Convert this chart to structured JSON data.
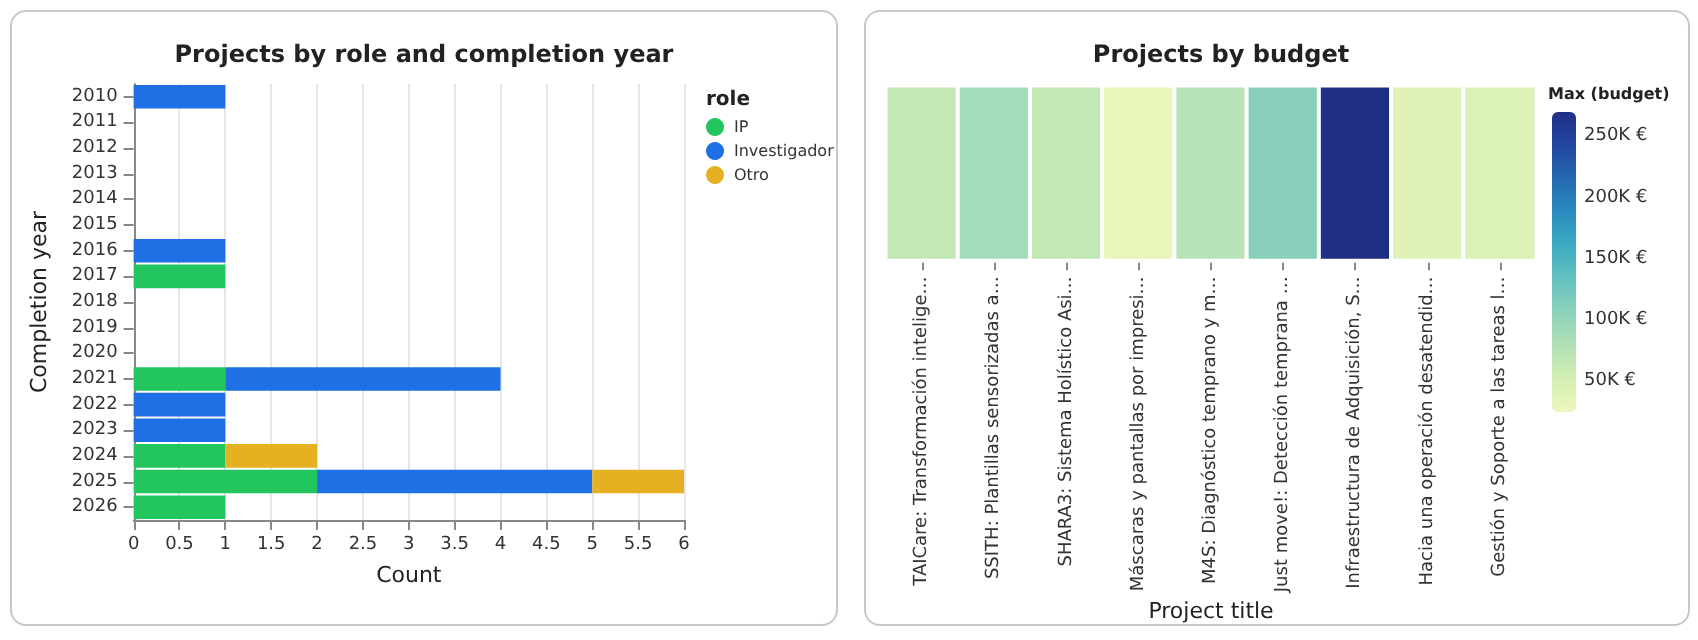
{
  "chart_data": [
    {
      "type": "bar",
      "orientation": "horizontal",
      "stacked": true,
      "title": "Projects by role and completion year",
      "xlabel": "Count",
      "ylabel": "Completion year",
      "legend_title": "role",
      "legend": "top right",
      "grid": "x",
      "categories": [
        "2010",
        "2011",
        "2012",
        "2013",
        "2014",
        "2015",
        "2016",
        "2017",
        "2018",
        "2019",
        "2020",
        "2021",
        "2022",
        "2023",
        "2024",
        "2025",
        "2026"
      ],
      "series": [
        {
          "name": "IP",
          "color": "#22c55e",
          "values": [
            null,
            null,
            null,
            null,
            null,
            null,
            null,
            1,
            null,
            null,
            null,
            1,
            null,
            null,
            1,
            2,
            1
          ]
        },
        {
          "name": "Investigador",
          "color": "#1f6fe5",
          "values": [
            1,
            null,
            null,
            null,
            null,
            null,
            1,
            null,
            null,
            null,
            null,
            3,
            1,
            1,
            null,
            3,
            null
          ]
        },
        {
          "name": "Otro",
          "color": "#e5b021",
          "values": [
            null,
            null,
            null,
            null,
            null,
            null,
            null,
            null,
            null,
            null,
            null,
            null,
            null,
            null,
            1,
            1,
            null
          ]
        }
      ],
      "xlim": [
        0,
        6
      ],
      "xticks": [
        0,
        0.5,
        1,
        1.5,
        2,
        2.5,
        3,
        3.5,
        4,
        4.5,
        5,
        5.5,
        6
      ]
    },
    {
      "type": "heatmap",
      "title": "Projects by budget",
      "xlabel": "Project title",
      "clabel": "Max (budget)",
      "tick_labels": "x",
      "categories": [
        "TAICare: Transformación intelige…",
        "SSITH: Plantillas sensorizadas a…",
        "SHARA3: Sistema Holístico Asi…",
        "Máscaras y pantallas por impresi…",
        "M4S: Diagnóstico temprano y m…",
        "Just move!: Detección temprana …",
        "Infraestructura de Adquisición, S…",
        "Hacia una operación desatendid…",
        "Gestión y Soporte a las tareas l…"
      ],
      "y_categories": [
        null
      ],
      "cells": [
        [
          65000,
          90000,
          65000,
          30000,
          75000,
          110000,
          270000,
          40000,
          45000
        ]
      ],
      "clim": [
        25000,
        270000
      ],
      "cticks": [
        {
          "value": 50000,
          "label": "50K €"
        },
        {
          "value": 100000,
          "label": "100K €"
        },
        {
          "value": 150000,
          "label": "150K €"
        },
        {
          "value": 200000,
          "label": "200K €"
        },
        {
          "value": 250000,
          "label": "250K €"
        }
      ]
    }
  ]
}
